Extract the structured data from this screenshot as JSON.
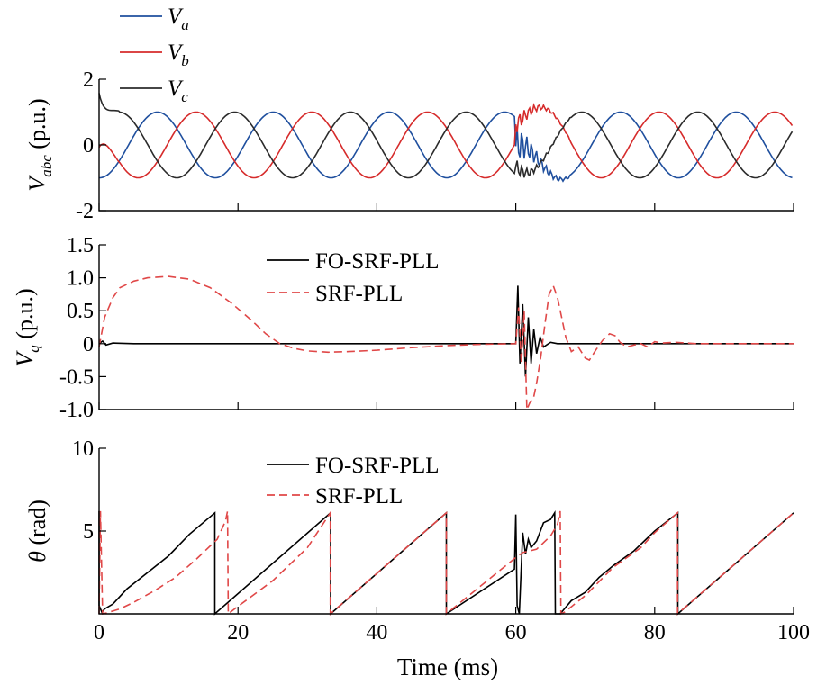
{
  "colors": {
    "va": "#1f4f9e",
    "vb": "#d62b2b",
    "vc": "#2b2b2b",
    "fo": "#000000",
    "srf": "#e04848"
  },
  "chart_data": [
    {
      "type": "line",
      "panel": "top",
      "ylabel_main": "V",
      "ylabel_sub": "abc",
      "ylabel_unit": " (p.u.)",
      "ylim": [
        -2,
        2
      ],
      "xlim": [
        0,
        100
      ],
      "yticks": [
        -2,
        0,
        2
      ],
      "ytick_labels": [
        "-2",
        "0",
        "2"
      ],
      "legend": {
        "placement": "top-left",
        "entries": [
          {
            "main": "V",
            "sub": "a",
            "color_key": "va"
          },
          {
            "main": "V",
            "sub": "b",
            "color_key": "vb"
          },
          {
            "main": "V",
            "sub": "c",
            "color_key": "vc"
          }
        ]
      },
      "series": [
        {
          "key": "va",
          "description": "three-phase sinusoid, amplitude 1 p.u., 60 Hz; transient disturbance 60-66 ms"
        },
        {
          "key": "vb"
        },
        {
          "key": "vc"
        }
      ]
    },
    {
      "type": "line",
      "panel": "middle",
      "ylabel_main": "V",
      "ylabel_sub": "q",
      "ylabel_unit": " (p.u.)",
      "ylim": [
        -1.0,
        1.5
      ],
      "xlim": [
        0,
        100
      ],
      "yticks": [
        -1.0,
        -0.5,
        0,
        0.5,
        1.0,
        1.5
      ],
      "ytick_labels": [
        "-1.0",
        "-0.5",
        "0",
        "0.5",
        "1.0",
        "1.5"
      ],
      "legend": {
        "placement": "top-center",
        "entries": [
          {
            "label": "FO-SRF-PLL",
            "color_key": "fo",
            "dash": false
          },
          {
            "label": "SRF-PLL",
            "color_key": "srf",
            "dash": true
          }
        ]
      },
      "series": [
        {
          "name": "FO-SRF-PLL",
          "points": [
            [
              0,
              0
            ],
            [
              0.5,
              0.04
            ],
            [
              1,
              -0.02
            ],
            [
              2,
              0.01
            ],
            [
              5,
              0
            ],
            [
              60,
              0
            ],
            [
              60.3,
              0.88
            ],
            [
              60.6,
              -0.3
            ],
            [
              61,
              0.6
            ],
            [
              61.4,
              -0.5
            ],
            [
              61.8,
              0.4
            ],
            [
              62.2,
              -0.3
            ],
            [
              62.6,
              0.22
            ],
            [
              63,
              -0.15
            ],
            [
              63.5,
              0.1
            ],
            [
              64,
              -0.05
            ],
            [
              65,
              0.02
            ],
            [
              66,
              0
            ],
            [
              100,
              0
            ]
          ]
        },
        {
          "name": "SRF-PLL",
          "points": [
            [
              0,
              -0.05
            ],
            [
              0.8,
              0.4
            ],
            [
              2,
              0.7
            ],
            [
              3,
              0.85
            ],
            [
              5,
              0.95
            ],
            [
              7,
              1.0
            ],
            [
              10,
              1.02
            ],
            [
              13,
              0.98
            ],
            [
              16,
              0.85
            ],
            [
              19,
              0.62
            ],
            [
              22,
              0.35
            ],
            [
              24,
              0.15
            ],
            [
              26,
              0
            ],
            [
              28,
              -0.07
            ],
            [
              30,
              -0.11
            ],
            [
              33,
              -0.13
            ],
            [
              36,
              -0.12
            ],
            [
              40,
              -0.1
            ],
            [
              45,
              -0.06
            ],
            [
              50,
              -0.03
            ],
            [
              55,
              -0.01
            ],
            [
              60,
              0
            ],
            [
              60.4,
              0.55
            ],
            [
              60.8,
              -0.3
            ],
            [
              61.2,
              0.5
            ],
            [
              61.6,
              -1.0
            ],
            [
              62,
              -0.9
            ],
            [
              62.5,
              -0.85
            ],
            [
              63,
              -0.6
            ],
            [
              63.6,
              -0.2
            ],
            [
              64.2,
              0.3
            ],
            [
              64.8,
              0.75
            ],
            [
              65.4,
              0.88
            ],
            [
              66,
              0.7
            ],
            [
              66.6,
              0.4
            ],
            [
              67.2,
              0.1
            ],
            [
              68,
              -0.12
            ],
            [
              69,
              -0.05
            ],
            [
              70,
              -0.22
            ],
            [
              70.6,
              -0.25
            ],
            [
              71.5,
              -0.1
            ],
            [
              72.5,
              0.05
            ],
            [
              73.5,
              0.15
            ],
            [
              74.3,
              0.12
            ],
            [
              75,
              0.02
            ],
            [
              76,
              -0.05
            ],
            [
              77,
              -0.02
            ],
            [
              78,
              0
            ],
            [
              79,
              -0.05
            ],
            [
              80,
              0.03
            ],
            [
              81,
              0.01
            ],
            [
              83,
              0.02
            ],
            [
              86,
              0
            ],
            [
              100,
              0
            ]
          ]
        }
      ]
    },
    {
      "type": "line",
      "panel": "bottom",
      "ylabel_main": "θ",
      "ylabel_unit": " (rad)",
      "ylim": [
        0,
        10
      ],
      "xlim": [
        0,
        100
      ],
      "yticks": [
        5,
        10
      ],
      "ytick_labels": [
        "5",
        "10"
      ],
      "xticks": [
        0,
        20,
        40,
        60,
        80,
        100
      ],
      "xtick_labels": [
        "0",
        "20",
        "40",
        "60",
        "80",
        "100"
      ],
      "xlabel": "Time (ms)",
      "legend": {
        "placement": "top-center",
        "entries": [
          {
            "label": "FO-SRF-PLL",
            "color_key": "fo",
            "dash": false
          },
          {
            "label": "SRF-PLL",
            "color_key": "srf",
            "dash": true
          }
        ]
      },
      "series": [
        {
          "name": "FO-SRF-PLL",
          "points": [
            [
              0,
              6.2
            ],
            [
              0,
              0.5
            ],
            [
              0.4,
              0.1
            ],
            [
              0.8,
              0.3
            ],
            [
              2,
              0.6
            ],
            [
              4,
              1.5
            ],
            [
              7,
              2.5
            ],
            [
              10,
              3.5
            ],
            [
              13,
              4.8
            ],
            [
              16.67,
              6.1
            ],
            [
              16.67,
              0
            ],
            [
              33.33,
              6.1
            ],
            [
              33.33,
              0
            ],
            [
              50,
              6.1
            ],
            [
              50,
              0
            ],
            [
              59.8,
              2.7
            ],
            [
              60,
              6
            ],
            [
              60.2,
              0.5
            ],
            [
              60.5,
              0
            ],
            [
              61,
              4.9
            ],
            [
              61.4,
              3.6
            ],
            [
              61.8,
              4.5
            ],
            [
              62.2,
              4.0
            ],
            [
              63,
              4.4
            ],
            [
              64,
              5.5
            ],
            [
              65,
              5.7
            ],
            [
              65.6,
              6.1
            ],
            [
              65.7,
              0
            ],
            [
              66.4,
              0
            ],
            [
              68,
              0.8
            ],
            [
              70,
              1.3
            ],
            [
              72,
              2.2
            ],
            [
              74,
              2.9
            ],
            [
              77,
              3.8
            ],
            [
              80,
              5.0
            ],
            [
              83.33,
              6.1
            ],
            [
              83.33,
              0
            ],
            [
              100,
              6.1
            ]
          ]
        },
        {
          "name": "SRF-PLL",
          "points": [
            [
              0,
              0
            ],
            [
              0.2,
              6.2
            ],
            [
              0.5,
              0
            ],
            [
              1,
              0.05
            ],
            [
              3,
              0.3
            ],
            [
              5,
              0.7
            ],
            [
              8,
              1.4
            ],
            [
              11,
              2.2
            ],
            [
              14,
              3.3
            ],
            [
              17,
              4.5
            ],
            [
              18.2,
              5.6
            ],
            [
              18.5,
              6.2
            ],
            [
              18.6,
              0
            ],
            [
              20,
              0.45
            ],
            [
              25,
              2.0
            ],
            [
              30,
              4.0
            ],
            [
              33.3,
              6.1
            ],
            [
              33.3,
              0
            ],
            [
              50,
              6.1
            ],
            [
              50,
              0
            ],
            [
              60,
              3.4
            ],
            [
              61,
              3.7
            ],
            [
              63,
              3.9
            ],
            [
              65,
              4.7
            ],
            [
              66,
              5.4
            ],
            [
              66.4,
              6.2
            ],
            [
              66.5,
              0
            ],
            [
              67,
              0.1
            ],
            [
              70,
              1.1
            ],
            [
              74,
              2.8
            ],
            [
              78,
              4.0
            ],
            [
              80,
              4.9
            ],
            [
              83.3,
              6.1
            ],
            [
              83.3,
              0
            ],
            [
              100,
              6.1
            ]
          ]
        }
      ]
    }
  ]
}
